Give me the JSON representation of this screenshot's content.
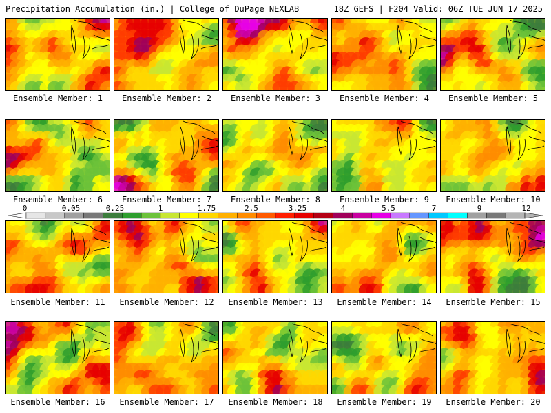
{
  "header": {
    "title": "Precipitation Accumulation (in.) | College of DuPage NEXLAB",
    "run_info": "18Z GEFS | F204 Valid: 06Z TUE JUN 17 2025"
  },
  "panels": [
    {
      "label": "Ensemble Member: 1",
      "seed": 11
    },
    {
      "label": "Ensemble Member: 2",
      "seed": 23
    },
    {
      "label": "Ensemble Member: 3",
      "seed": 37
    },
    {
      "label": "Ensemble Member: 4",
      "seed": 41
    },
    {
      "label": "Ensemble Member: 5",
      "seed": 53
    },
    {
      "label": "Ensemble Member: 6",
      "seed": 67
    },
    {
      "label": "Ensemble Member: 7",
      "seed": 71
    },
    {
      "label": "Ensemble Member: 8",
      "seed": 83
    },
    {
      "label": "Ensemble Member: 9",
      "seed": 97
    },
    {
      "label": "Ensemble Member: 10",
      "seed": 101
    },
    {
      "label": "Ensemble Member: 11",
      "seed": 113
    },
    {
      "label": "Ensemble Member: 12",
      "seed": 127
    },
    {
      "label": "Ensemble Member: 13",
      "seed": 131
    },
    {
      "label": "Ensemble Member: 14",
      "seed": 149
    },
    {
      "label": "Ensemble Member: 15",
      "seed": 157
    },
    {
      "label": "Ensemble Member: 16",
      "seed": 163
    },
    {
      "label": "Ensemble Member: 17",
      "seed": 179
    },
    {
      "label": "Ensemble Member: 18",
      "seed": 181
    },
    {
      "label": "Ensemble Member: 19",
      "seed": 191
    },
    {
      "label": "Ensemble Member: 20",
      "seed": 199
    }
  ],
  "colorbar": {
    "tick_labels": [
      "0",
      "0.05",
      "0.25",
      "1",
      "1.75",
      "2.5",
      "3.25",
      "4",
      "5.5",
      "7",
      "9",
      "12"
    ],
    "colors": [
      "#e6e6e6",
      "#c8c8c8",
      "#a0a0a0",
      "#787878",
      "#3c7d3c",
      "#2e9e2e",
      "#6cc23a",
      "#c8e632",
      "#ffff00",
      "#ffd700",
      "#ffb000",
      "#ff8c00",
      "#ff5a00",
      "#ff1e00",
      "#e60000",
      "#b40014",
      "#a0005a",
      "#c800a0",
      "#e600e6",
      "#c878ff",
      "#6496ff",
      "#00c8ff",
      "#00ffff",
      "#a0a0a0",
      "#787878",
      "#b4b4b4"
    ]
  }
}
